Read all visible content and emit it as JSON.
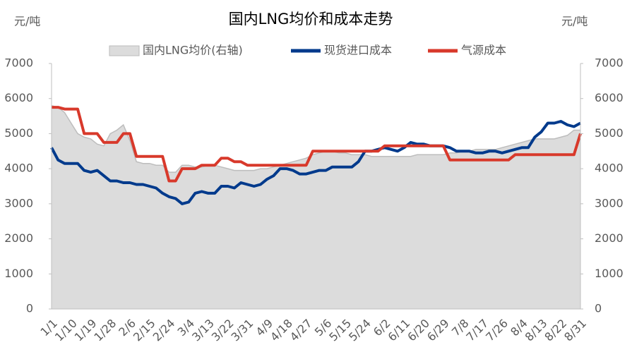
{
  "chart_data": {
    "type": "line",
    "title": "国内LNG均价和成本走势",
    "y_unit": "元/吨",
    "y2_unit": "元/吨",
    "categories": [
      "1/1",
      null,
      null,
      "1/10",
      null,
      null,
      "1/19",
      null,
      null,
      "1/28",
      null,
      null,
      "2/6",
      null,
      null,
      "2/15",
      null,
      null,
      "2/24",
      null,
      null,
      "3/4",
      null,
      null,
      "3/13",
      null,
      null,
      "3/22",
      null,
      null,
      "3/31",
      null,
      null,
      "4/9",
      null,
      null,
      "4/18",
      null,
      null,
      "4/27",
      null,
      null,
      "5/6",
      null,
      null,
      "5/15",
      null,
      null,
      "5/24",
      null,
      null,
      "6/2",
      null,
      null,
      "6/11",
      null,
      null,
      "6/20",
      null,
      null,
      "6/29",
      null,
      null,
      "7/8",
      null,
      null,
      "7/17",
      null,
      null,
      "7/26",
      null,
      null,
      "8/4",
      null,
      null,
      "8/13",
      null,
      null,
      "8/22",
      null,
      null,
      "8/31"
    ],
    "series": [
      {
        "name": "国内LNG均价(右轴)",
        "kind": "area",
        "axis": "y2",
        "color": "#dcdcdc",
        "values": [
          5800,
          5750,
          5600,
          5300,
          5000,
          4900,
          4850,
          4700,
          4650,
          5000,
          5100,
          5250,
          4800,
          4200,
          4150,
          4150,
          4100,
          4100,
          3900,
          3900,
          4100,
          4100,
          4050,
          4050,
          4100,
          4100,
          4050,
          4000,
          3950,
          3950,
          3950,
          3950,
          4000,
          4000,
          4050,
          4100,
          4150,
          4200,
          4250,
          4300,
          4400,
          4450,
          4500,
          4500,
          4450,
          4450,
          4400,
          4400,
          4400,
          4350,
          4350,
          4350,
          4350,
          4350,
          4350,
          4350,
          4400,
          4400,
          4400,
          4400,
          4400,
          4450,
          4450,
          4500,
          4500,
          4550,
          4550,
          4550,
          4550,
          4600,
          4650,
          4700,
          4750,
          4800,
          4850,
          4850,
          4850,
          4850,
          4900,
          4950,
          5100,
          5100
        ]
      },
      {
        "name": "现货进口成本",
        "kind": "line",
        "color": "#003a8c",
        "values": [
          4600,
          4250,
          4150,
          4150,
          4150,
          3950,
          3900,
          3950,
          3800,
          3650,
          3650,
          3600,
          3600,
          3550,
          3550,
          3500,
          3450,
          3300,
          3200,
          3150,
          3000,
          3050,
          3300,
          3350,
          3300,
          3300,
          3500,
          3500,
          3450,
          3600,
          3550,
          3500,
          3550,
          3700,
          3800,
          4000,
          4000,
          3950,
          3850,
          3850,
          3900,
          3950,
          3950,
          4050,
          4050,
          4050,
          4050,
          4200,
          4500,
          4500,
          4550,
          4600,
          4550,
          4500,
          4600,
          4750,
          4700,
          4700,
          4650,
          4650,
          4650,
          4600,
          4500,
          4500,
          4500,
          4450,
          4450,
          4500,
          4500,
          4450,
          4500,
          4550,
          4600,
          4600,
          4900,
          5050,
          5300,
          5300,
          5350,
          5250,
          5200,
          5300
        ]
      },
      {
        "name": "气源成本",
        "kind": "line",
        "color": "#d8392b",
        "values": [
          5750,
          5750,
          5700,
          5700,
          5700,
          5000,
          5000,
          5000,
          4750,
          4750,
          4750,
          5000,
          5000,
          4350,
          4350,
          4350,
          4350,
          4350,
          3650,
          3650,
          4000,
          4000,
          4000,
          4100,
          4100,
          4100,
          4300,
          4300,
          4200,
          4200,
          4100,
          4100,
          4100,
          4100,
          4100,
          4100,
          4100,
          4100,
          4100,
          4100,
          4500,
          4500,
          4500,
          4500,
          4500,
          4500,
          4500,
          4500,
          4500,
          4500,
          4500,
          4650,
          4650,
          4650,
          4650,
          4650,
          4650,
          4650,
          4650,
          4650,
          4650,
          4250,
          4250,
          4250,
          4250,
          4250,
          4250,
          4250,
          4250,
          4250,
          4250,
          4400,
          4400,
          4400,
          4400,
          4400,
          4400,
          4400,
          4400,
          4400,
          4400,
          5000
        ]
      }
    ],
    "ylim": [
      0,
      7000
    ],
    "yticks": [
      0,
      1000,
      2000,
      3000,
      4000,
      5000,
      6000,
      7000
    ],
    "y2lim": [
      0,
      7000
    ],
    "y2ticks": [
      0,
      1000,
      2000,
      3000,
      4000,
      5000,
      6000,
      7000
    ],
    "grid": false,
    "legend": "top"
  }
}
